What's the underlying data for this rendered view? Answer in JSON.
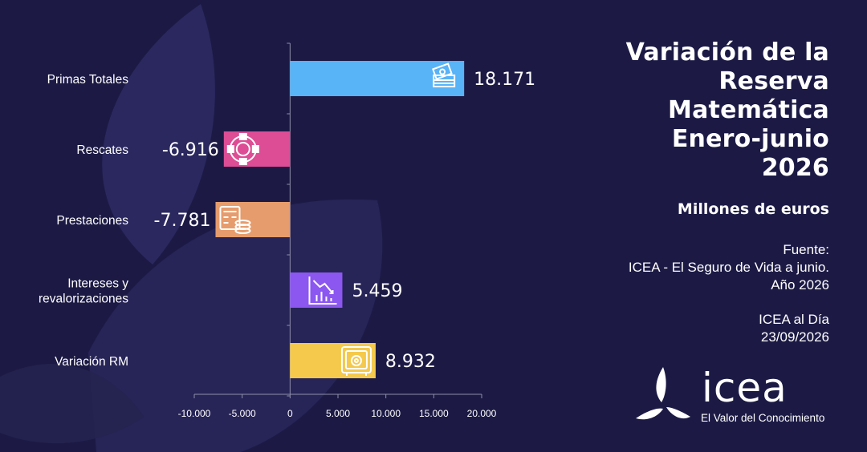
{
  "title_lines": [
    "Variación de la",
    "Reserva",
    "Matemática",
    "Enero-junio",
    "2026"
  ],
  "subtitle": "Millones de euros",
  "source": {
    "label": "Fuente:",
    "line1": "ICEA - El Seguro de Vida a junio.",
    "line2": "Año 2026",
    "line3": "ICEA al Día",
    "line4": "23/09/2026"
  },
  "logo": {
    "word": "icea",
    "tagline": "El Valor del Conocimiento"
  },
  "colors": {
    "background": "#1c1a45",
    "axis": "#8f8fa8"
  },
  "chart_data": {
    "type": "bar",
    "orientation": "horizontal",
    "categories": [
      [
        "Primas Totales"
      ],
      [
        "Rescates"
      ],
      [
        "Prestaciones"
      ],
      [
        "Intereses y",
        "revalorizaciones"
      ],
      [
        "Variación RM"
      ]
    ],
    "values": [
      18171,
      -6916,
      -7781,
      5459,
      8932
    ],
    "value_labels": [
      "18.171",
      "-6.916",
      "-7.781",
      "5.459",
      "8.932"
    ],
    "bar_colors": [
      "#58b3f7",
      "#dd4d95",
      "#e69c6c",
      "#8b57f0",
      "#f4c94c"
    ],
    "bar_icons": [
      "money-stack-icon",
      "lifebuoy-icon",
      "calculator-coins-icon",
      "declining-chart-icon",
      "safe-icon"
    ],
    "xlim": [
      -10000,
      20000
    ],
    "xticks": [
      -10000,
      -5000,
      0,
      5000,
      10000,
      15000,
      20000
    ],
    "xtick_labels": [
      "-10.000",
      "-5.000",
      "0",
      "5.000",
      "10.000",
      "15.000",
      "20.000"
    ],
    "title": "",
    "xlabel": "",
    "ylabel": "",
    "grid": false,
    "legend": "none"
  }
}
